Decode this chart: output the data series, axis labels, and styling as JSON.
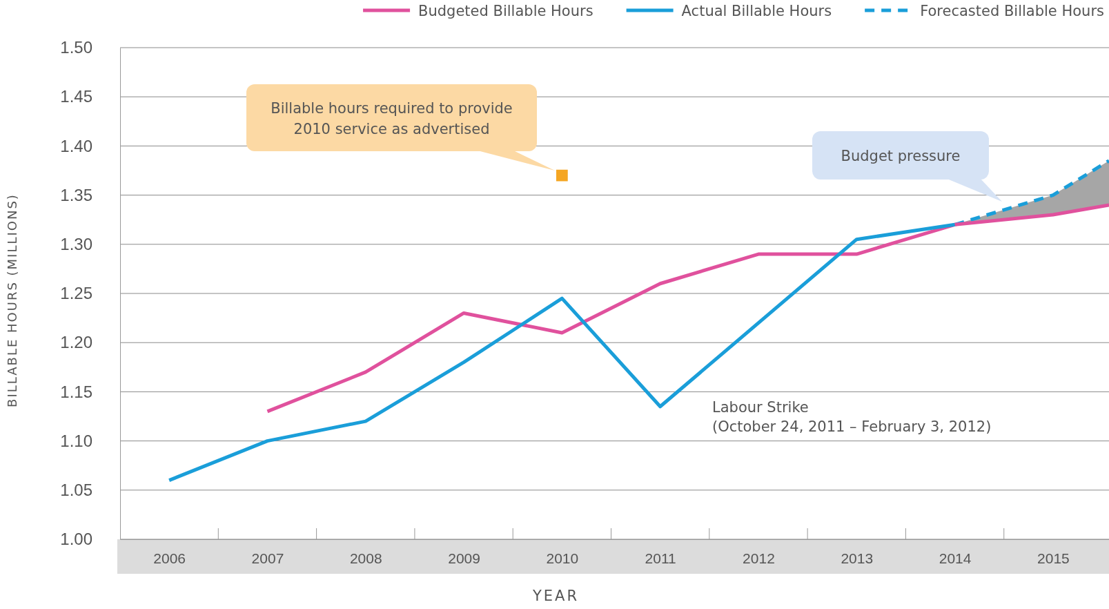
{
  "chart_data": {
    "type": "line",
    "xlabel": "YEAR",
    "ylabel": "BILLABLE HOURS (MILLIONS)",
    "xlim": [
      2005.5,
      2015.57
    ],
    "ylim": [
      1.0,
      1.5
    ],
    "xticks": [
      2006,
      {
        "value": 2006.5,
        "label": null
      },
      2007,
      {
        "value": 2007.5,
        "label": null
      },
      2008,
      {
        "value": 2008.5,
        "label": null
      },
      2009,
      {
        "value": 2009.5,
        "label": null
      },
      2010,
      {
        "value": 2010.5,
        "label": null
      },
      2011,
      {
        "value": 2011.5,
        "label": null
      },
      2012,
      {
        "value": 2012.5,
        "label": null
      },
      2013,
      {
        "value": 2013.5,
        "label": null
      },
      2014,
      {
        "value": 2014.5,
        "label": null
      },
      2015
    ],
    "yticks": [
      {
        "value": 1.0,
        "label": "1.00"
      },
      1.05,
      {
        "value": 1.1,
        "label": "1.10"
      },
      1.15,
      {
        "value": 1.2,
        "label": "1.20"
      },
      1.25,
      {
        "value": 1.3,
        "label": "1.30"
      },
      1.35,
      {
        "value": 1.4,
        "label": "1.40"
      },
      1.45,
      {
        "value": 1.5,
        "label": "1.50"
      }
    ],
    "grid": "y",
    "legend": "top right",
    "series": [
      {
        "name": "Budgeted Billable Hours",
        "color": "#e0519d",
        "x": [
          2007,
          2008,
          2009,
          2010,
          2011,
          2012,
          2013,
          2014,
          2015,
          2015.57
        ],
        "values": [
          1.13,
          1.17,
          1.23,
          1.21,
          1.26,
          1.29,
          1.29,
          1.32,
          1.33,
          1.34
        ]
      },
      {
        "name": "Actual Billable Hours",
        "color": "#1a9ed9",
        "x": [
          2006,
          2007,
          2008,
          2009,
          2010,
          2011,
          2013,
          2014
        ],
        "values": [
          1.06,
          1.1,
          1.12,
          1.18,
          1.245,
          1.135,
          1.305,
          1.32
        ]
      },
      {
        "name": "Forecasted Billable Hours",
        "color": "#1a9ed9",
        "line_style": "dashed",
        "x": [
          2014,
          2015,
          2015.57
        ],
        "values": [
          1.32,
          1.35,
          1.385
        ],
        "lower": [
          1.32,
          1.33,
          1.34
        ],
        "upper": [
          1.32,
          1.35,
          1.385
        ]
      },
      {
        "type": "scatter",
        "marker": "square",
        "color": "#f5a623",
        "x": [
          2010
        ],
        "values": [
          1.37
        ]
      }
    ],
    "annotations": [
      "Billable hours required to provide\n2010 service as advertised",
      "Budget pressure",
      "Labour Strike\n(October 24, 2011 – February 3, 2012)"
    ]
  }
}
